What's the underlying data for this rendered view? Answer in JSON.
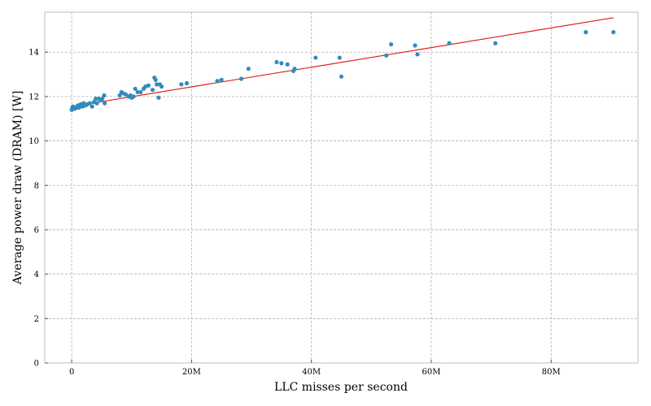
{
  "chart_data": {
    "type": "scatter",
    "title": "",
    "xlabel": "LLC misses per second",
    "ylabel": "Average power draw (DRAM) [W]",
    "xlim": [
      -4500000,
      94500000
    ],
    "ylim": [
      0,
      15.8
    ],
    "grid": true,
    "x_ticks": [
      {
        "value": 0,
        "label": "0"
      },
      {
        "value": 20000000,
        "label": "20M"
      },
      {
        "value": 40000000,
        "label": "40M"
      },
      {
        "value": 60000000,
        "label": "60M"
      },
      {
        "value": 80000000,
        "label": "80M"
      }
    ],
    "y_ticks": [
      {
        "value": 0,
        "label": "0"
      },
      {
        "value": 2,
        "label": "2"
      },
      {
        "value": 4,
        "label": "4"
      },
      {
        "value": 6,
        "label": "6"
      },
      {
        "value": 8,
        "label": "8"
      },
      {
        "value": 10,
        "label": "10"
      },
      {
        "value": 12,
        "label": "12"
      },
      {
        "value": 14,
        "label": "14"
      }
    ],
    "series": [
      {
        "type": "scatter",
        "color": "#348abd",
        "points": [
          [
            0,
            11.4
          ],
          [
            100000,
            11.5
          ],
          [
            200000,
            11.55
          ],
          [
            500000,
            11.45
          ],
          [
            800000,
            11.5
          ],
          [
            1000000,
            11.6
          ],
          [
            1200000,
            11.5
          ],
          [
            1500000,
            11.65
          ],
          [
            1800000,
            11.55
          ],
          [
            2000000,
            11.7
          ],
          [
            2300000,
            11.6
          ],
          [
            2600000,
            11.65
          ],
          [
            3000000,
            11.7
          ],
          [
            3400000,
            11.55
          ],
          [
            3700000,
            11.75
          ],
          [
            4000000,
            11.9
          ],
          [
            4200000,
            11.7
          ],
          [
            4500000,
            11.9
          ],
          [
            4800000,
            11.85
          ],
          [
            5100000,
            11.9
          ],
          [
            5400000,
            12.05
          ],
          [
            5500000,
            11.7
          ],
          [
            8000000,
            12.05
          ],
          [
            8300000,
            12.2
          ],
          [
            8600000,
            12.15
          ],
          [
            9000000,
            12.1
          ],
          [
            9500000,
            12.0
          ],
          [
            9800000,
            12.05
          ],
          [
            10000000,
            11.95
          ],
          [
            10300000,
            12.0
          ],
          [
            10600000,
            12.35
          ],
          [
            11000000,
            12.2
          ],
          [
            11500000,
            12.2
          ],
          [
            12000000,
            12.35
          ],
          [
            12300000,
            12.45
          ],
          [
            12800000,
            12.5
          ],
          [
            13500000,
            12.3
          ],
          [
            13800000,
            12.85
          ],
          [
            14000000,
            12.75
          ],
          [
            14200000,
            12.55
          ],
          [
            14500000,
            11.95
          ],
          [
            14700000,
            12.55
          ],
          [
            15000000,
            12.45
          ],
          [
            18300000,
            12.55
          ],
          [
            19200000,
            12.6
          ],
          [
            24300000,
            12.7
          ],
          [
            25000000,
            12.75
          ],
          [
            28300000,
            12.8
          ],
          [
            29500000,
            13.25
          ],
          [
            34200000,
            13.55
          ],
          [
            35000000,
            13.5
          ],
          [
            36000000,
            13.45
          ],
          [
            37000000,
            13.15
          ],
          [
            37200000,
            13.25
          ],
          [
            40700000,
            13.75
          ],
          [
            44700000,
            13.75
          ],
          [
            45000000,
            12.9
          ],
          [
            52500000,
            13.85
          ],
          [
            53300000,
            14.35
          ],
          [
            57300000,
            14.3
          ],
          [
            57700000,
            13.9
          ],
          [
            63000000,
            14.4
          ],
          [
            70700000,
            14.4
          ],
          [
            85800000,
            14.9
          ],
          [
            90400000,
            14.9
          ]
        ]
      },
      {
        "type": "line",
        "color": "#e41a1c",
        "points": [
          [
            0,
            11.55
          ],
          [
            90400000,
            15.55
          ]
        ]
      }
    ]
  }
}
